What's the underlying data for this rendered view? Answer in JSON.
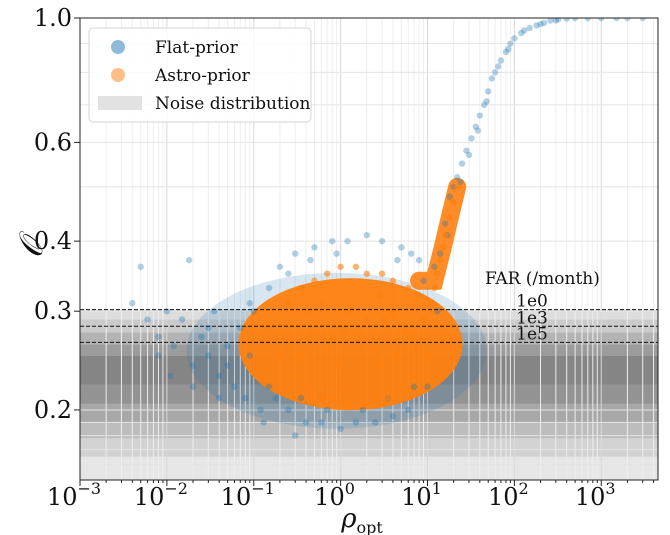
{
  "chart_data": {
    "type": "scatter",
    "title": "",
    "xlabel": "ρ",
    "xlabel_sub": "opt",
    "ylabel": "𝒪",
    "xscale": "log",
    "yscale": "log",
    "xlim": [
      0.001,
      4500
    ],
    "ylim": [
      0.15,
      1.0
    ],
    "grid": true,
    "legend_position": "top-left",
    "x_ticks": [
      {
        "value": 0.001,
        "base": "10",
        "exp": "−3"
      },
      {
        "value": 0.01,
        "base": "10",
        "exp": "−2"
      },
      {
        "value": 0.1,
        "base": "10",
        "exp": "−1"
      },
      {
        "value": 1,
        "base": "10",
        "exp": "0"
      },
      {
        "value": 10,
        "base": "10",
        "exp": "1"
      },
      {
        "value": 100,
        "base": "10",
        "exp": "2"
      },
      {
        "value": 1000,
        "base": "10",
        "exp": "3"
      }
    ],
    "y_ticks": [
      {
        "value": 0.2,
        "label": "0.2"
      },
      {
        "value": 0.3,
        "label": "0.3"
      },
      {
        "value": 0.4,
        "label": "0.4"
      },
      {
        "value": 0.6,
        "label": "0.6"
      },
      {
        "value": 1.0,
        "label": "1.0"
      }
    ],
    "series": [
      {
        "name": "Flat-prior",
        "color": "#1f77b4",
        "points": [
          [
            0.004,
            0.31
          ],
          [
            0.005,
            0.36
          ],
          [
            0.006,
            0.29
          ],
          [
            0.008,
            0.27
          ],
          [
            0.01,
            0.3
          ],
          [
            0.012,
            0.26
          ],
          [
            0.015,
            0.29
          ],
          [
            0.018,
            0.37
          ],
          [
            0.02,
            0.24
          ],
          [
            0.025,
            0.27
          ],
          [
            0.03,
            0.25
          ],
          [
            0.035,
            0.3
          ],
          [
            0.04,
            0.23
          ],
          [
            0.05,
            0.26
          ],
          [
            0.06,
            0.22
          ],
          [
            0.07,
            0.28
          ],
          [
            0.08,
            0.21
          ],
          [
            0.09,
            0.25
          ],
          [
            0.1,
            0.3
          ],
          [
            0.12,
            0.2
          ],
          [
            0.15,
            0.33
          ],
          [
            0.18,
            0.21
          ],
          [
            0.2,
            0.36
          ],
          [
            0.25,
            0.2
          ],
          [
            0.3,
            0.38
          ],
          [
            0.4,
            0.19
          ],
          [
            0.5,
            0.39
          ],
          [
            0.6,
            0.19
          ],
          [
            0.8,
            0.4
          ],
          [
            1.0,
            0.185
          ],
          [
            1.2,
            0.4
          ],
          [
            1.5,
            0.19
          ],
          [
            2.0,
            0.41
          ],
          [
            2.5,
            0.19
          ],
          [
            3.0,
            0.4
          ],
          [
            4.0,
            0.195
          ],
          [
            5.0,
            0.39
          ],
          [
            6.0,
            0.2
          ],
          [
            8.0,
            0.37
          ],
          [
            10,
            0.22
          ],
          [
            12,
            0.36
          ],
          [
            14,
            0.38
          ],
          [
            16,
            0.43
          ],
          [
            18,
            0.48
          ],
          [
            20,
            0.5
          ],
          [
            22,
            0.52
          ],
          [
            25,
            0.55
          ],
          [
            28,
            0.58
          ],
          [
            32,
            0.61
          ],
          [
            36,
            0.64
          ],
          [
            40,
            0.67
          ],
          [
            45,
            0.7
          ],
          [
            50,
            0.74
          ],
          [
            55,
            0.78
          ],
          [
            60,
            0.8
          ],
          [
            70,
            0.84
          ],
          [
            80,
            0.87
          ],
          [
            90,
            0.9
          ],
          [
            100,
            0.92
          ],
          [
            120,
            0.94
          ],
          [
            150,
            0.96
          ],
          [
            180,
            0.97
          ],
          [
            220,
            0.98
          ],
          [
            260,
            0.99
          ],
          [
            320,
            0.995
          ],
          [
            400,
            0.998
          ],
          [
            500,
            1.0
          ],
          [
            700,
            1.0
          ],
          [
            1000,
            1.0
          ],
          [
            1500,
            1.0
          ],
          [
            2000,
            1.0
          ],
          [
            3000,
            1.0
          ],
          [
            0.05,
            0.24
          ],
          [
            0.03,
            0.28
          ],
          [
            0.09,
            0.31
          ],
          [
            0.15,
            0.22
          ],
          [
            0.35,
            0.21
          ],
          [
            0.7,
            0.2
          ],
          [
            1.8,
            0.2
          ],
          [
            3.5,
            0.21
          ],
          [
            7.0,
            0.22
          ],
          [
            9.0,
            0.34
          ],
          [
            13,
            0.3
          ],
          [
            6.5,
            0.38
          ],
          [
            0.25,
            0.35
          ],
          [
            0.45,
            0.37
          ],
          [
            0.9,
            0.38
          ],
          [
            4.5,
            0.37
          ],
          [
            17,
            0.41
          ],
          [
            24,
            0.51
          ],
          [
            30,
            0.57
          ],
          [
            38,
            0.63
          ],
          [
            48,
            0.71
          ],
          [
            65,
            0.82
          ],
          [
            85,
            0.88
          ],
          [
            130,
            0.95
          ],
          [
            200,
            0.975
          ],
          [
            300,
            0.99
          ],
          [
            0.008,
            0.25
          ],
          [
            0.011,
            0.23
          ],
          [
            0.02,
            0.22
          ],
          [
            0.04,
            0.21
          ],
          [
            0.13,
            0.19
          ],
          [
            0.3,
            0.18
          ]
        ]
      },
      {
        "name": "Astro-prior",
        "color": "#ff7f0e",
        "points": [
          [
            0.15,
            0.28
          ],
          [
            0.2,
            0.25
          ],
          [
            0.25,
            0.31
          ],
          [
            0.3,
            0.23
          ],
          [
            0.35,
            0.33
          ],
          [
            0.4,
            0.22
          ],
          [
            0.5,
            0.34
          ],
          [
            0.6,
            0.21
          ],
          [
            0.7,
            0.35
          ],
          [
            0.8,
            0.21
          ],
          [
            1.0,
            0.36
          ],
          [
            1.2,
            0.205
          ],
          [
            1.5,
            0.36
          ],
          [
            1.8,
            0.205
          ],
          [
            2.0,
            0.35
          ],
          [
            2.5,
            0.21
          ],
          [
            3.0,
            0.35
          ],
          [
            3.5,
            0.21
          ],
          [
            4.0,
            0.34
          ],
          [
            5.0,
            0.22
          ],
          [
            6.0,
            0.33
          ],
          [
            7.0,
            0.23
          ],
          [
            8.0,
            0.32
          ],
          [
            10,
            0.25
          ],
          [
            12,
            0.33
          ],
          [
            14,
            0.37
          ],
          [
            16,
            0.41
          ],
          [
            18,
            0.44
          ],
          [
            20,
            0.47
          ],
          [
            22,
            0.5
          ],
          [
            0.45,
            0.27
          ],
          [
            0.9,
            0.24
          ],
          [
            1.3,
            0.3
          ],
          [
            2.2,
            0.26
          ],
          [
            3.2,
            0.29
          ],
          [
            4.5,
            0.25
          ],
          [
            5.5,
            0.28
          ],
          [
            0.35,
            0.25
          ],
          [
            0.6,
            0.31
          ],
          [
            1.1,
            0.28
          ],
          [
            0.55,
            0.23
          ],
          [
            1.6,
            0.23
          ],
          [
            2.8,
            0.32
          ],
          [
            6.5,
            0.27
          ],
          [
            9.0,
            0.29
          ],
          [
            11,
            0.31
          ],
          [
            13,
            0.35
          ],
          [
            15,
            0.39
          ],
          [
            0.8,
            0.27
          ],
          [
            2.0,
            0.29
          ],
          [
            0.25,
            0.26
          ],
          [
            4.0,
            0.3
          ],
          [
            7.5,
            0.26
          ],
          [
            1.0,
            0.22
          ],
          [
            3.0,
            0.24
          ],
          [
            0.4,
            0.3
          ]
        ]
      }
    ],
    "density_bands": [
      {
        "range": [
          0.22,
          0.3
        ],
        "label": "",
        "color": "#1f77b4"
      },
      {
        "range": [
          0.25,
          0.34
        ],
        "label": "",
        "color": "#ff7f0e"
      }
    ],
    "noise_distribution": {
      "name": "Noise distribution",
      "bands": [
        {
          "y0": 0.15,
          "y1": 0.165,
          "gray": "#e6e6e6"
        },
        {
          "y0": 0.165,
          "y1": 0.178,
          "gray": "#d2d2d2"
        },
        {
          "y0": 0.178,
          "y1": 0.19,
          "gray": "#bdbdbd"
        },
        {
          "y0": 0.19,
          "y1": 0.205,
          "gray": "#a8a8a8"
        },
        {
          "y0": 0.205,
          "y1": 0.222,
          "gray": "#939393"
        },
        {
          "y0": 0.222,
          "y1": 0.25,
          "gray": "#858585"
        },
        {
          "y0": 0.25,
          "y1": 0.262,
          "gray": "#9c9c9c"
        },
        {
          "y0": 0.262,
          "y1": 0.275,
          "gray": "#b3b3b3"
        },
        {
          "y0": 0.275,
          "y1": 0.29,
          "gray": "#cbcbcb"
        },
        {
          "y0": 0.29,
          "y1": 0.302,
          "gray": "#dddddd"
        }
      ]
    },
    "far_lines": [
      {
        "y": 0.302,
        "label": "1e0"
      },
      {
        "y": 0.282,
        "label": "1e3"
      },
      {
        "y": 0.264,
        "label": "1e5"
      }
    ],
    "far_title": "FAR (/month)"
  }
}
